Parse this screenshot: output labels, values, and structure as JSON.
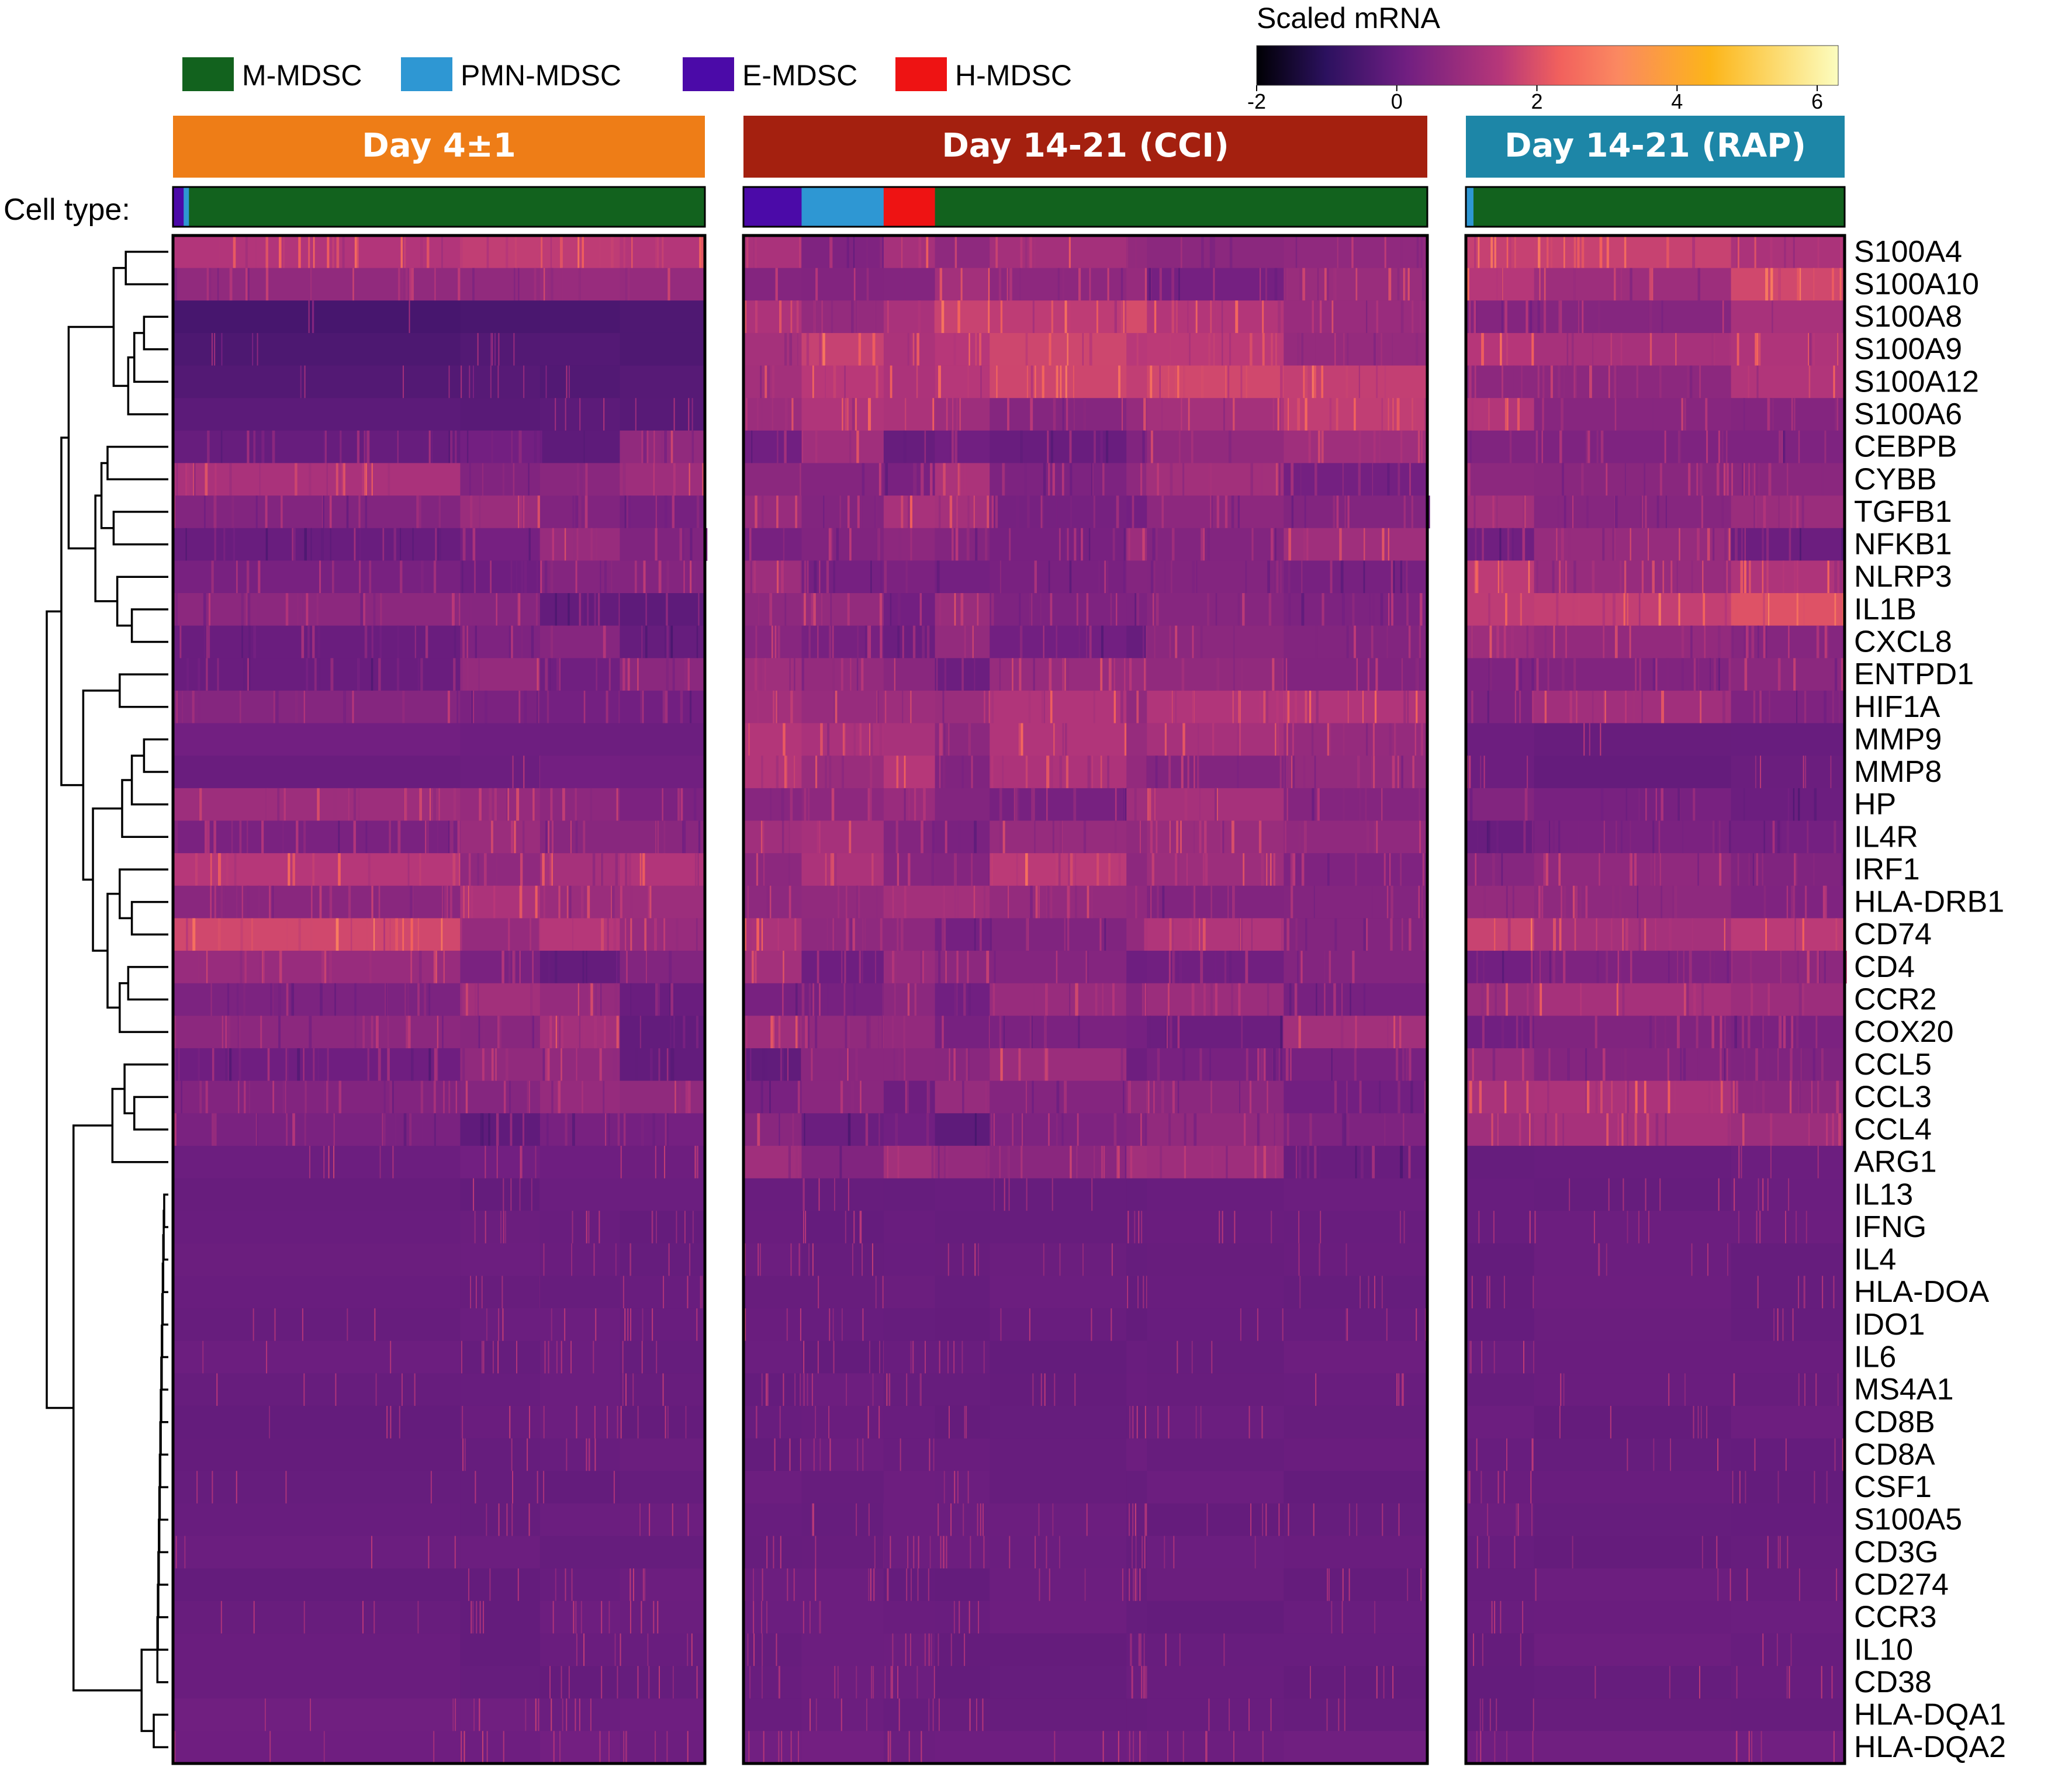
{
  "chart_data": {
    "type": "heatmap",
    "colorbar": {
      "title": "Scaled mRNA",
      "ticks": [
        "-2",
        "0",
        "2",
        "4",
        "6"
      ],
      "range": [
        -2,
        6.3
      ],
      "colors": [
        "#000004",
        "#2c115f",
        "#5e1b7a",
        "#721f81",
        "#b73779",
        "#f1605d",
        "#fb8861",
        "#fcb519",
        "#fcfdbf"
      ]
    },
    "legend": [
      {
        "label": "M-MDSC",
        "color": "#12621e"
      },
      {
        "label": "PMN-MDSC",
        "color": "#2e97d3"
      },
      {
        "label": "E-MDSC",
        "color": "#4b0aa8"
      },
      {
        "label": "H-MDSC",
        "color": "#ee1313"
      }
    ],
    "cell_type_label": "Cell type:",
    "panels": [
      {
        "title": "Day 4±1",
        "header_color": "#ee7d17",
        "cell_types": [
          {
            "type": "E-MDSC",
            "fraction": 0.02
          },
          {
            "type": "PMN-MDSC",
            "fraction": 0.01
          },
          {
            "type": "M-MDSC",
            "fraction": 0.97
          }
        ],
        "clusters": [
          0.54,
          0.15,
          0.15,
          0.16
        ]
      },
      {
        "title": "Day 14-21 (CCI)",
        "header_color": "#a4200f",
        "cell_types": [
          {
            "type": "E-MDSC",
            "fraction": 0.085
          },
          {
            "type": "PMN-MDSC",
            "fraction": 0.12
          },
          {
            "type": "H-MDSC",
            "fraction": 0.075
          },
          {
            "type": "M-MDSC",
            "fraction": 0.72
          }
        ],
        "clusters": [
          0.085,
          0.12,
          0.075,
          0.08,
          0.2,
          0.03,
          0.2,
          0.21
        ]
      },
      {
        "title": "Day 14-21 (RAP)",
        "header_color": "#1d86a7",
        "cell_types": [
          {
            "type": "PMN-MDSC",
            "fraction": 0.02
          },
          {
            "type": "M-MDSC",
            "fraction": 0.98
          }
        ],
        "clusters": [
          0.18,
          0.52,
          0.3
        ]
      }
    ],
    "genes": [
      "S100A4",
      "S100A10",
      "S100A8",
      "S100A9",
      "S100A12",
      "S100A6",
      "CEBPB",
      "CYBB",
      "TGFB1",
      "NFKB1",
      "NLRP3",
      "IL1B",
      "CXCL8",
      "ENTPD1",
      "HIF1A",
      "MMP9",
      "MMP8",
      "HP",
      "IL4R",
      "IRF1",
      "HLA-DRB1",
      "CD74",
      "CD4",
      "CCR2",
      "COX20",
      "CCL5",
      "CCL3",
      "CCL4",
      "ARG1",
      "IL13",
      "IFNG",
      "IL4",
      "HLA-DOA",
      "IDO1",
      "IL6",
      "MS4A1",
      "CD8B",
      "CD8A",
      "CSF1",
      "S100A5",
      "CD3G",
      "CD274",
      "CCR3",
      "IL10",
      "CD38",
      "HLA-DQA1",
      "HLA-DQA2"
    ],
    "mean_scaled_values": {
      "columns": [
        "Day 4±1",
        "Day 14-21 (CCI)",
        "Day 14-21 (RAP)"
      ],
      "rows": [
        [
          1.2,
          1.0,
          1.5
        ],
        [
          0.8,
          0.8,
          1.4
        ],
        [
          -0.5,
          1.4,
          1.1
        ],
        [
          -0.4,
          1.4,
          1.0
        ],
        [
          -0.3,
          1.3,
          0.9
        ],
        [
          -0.2,
          1.1,
          0.9
        ],
        [
          0.4,
          0.5,
          0.5
        ],
        [
          0.9,
          0.7,
          0.8
        ],
        [
          0.5,
          0.6,
          0.6
        ],
        [
          0.6,
          0.6,
          0.6
        ],
        [
          0.3,
          0.5,
          1.3
        ],
        [
          0.4,
          0.6,
          1.6
        ],
        [
          0.3,
          0.5,
          0.8
        ],
        [
          0.5,
          0.6,
          0.7
        ],
        [
          0.6,
          0.8,
          0.9
        ],
        [
          0.1,
          1.1,
          0.0
        ],
        [
          0.1,
          1.0,
          0.0
        ],
        [
          0.4,
          0.6,
          0.5
        ],
        [
          0.5,
          0.7,
          0.5
        ],
        [
          0.9,
          1.0,
          0.7
        ],
        [
          1.0,
          0.9,
          0.9
        ],
        [
          1.4,
          0.8,
          1.2
        ],
        [
          0.4,
          0.5,
          0.5
        ],
        [
          0.6,
          0.6,
          0.6
        ],
        [
          0.5,
          0.5,
          0.5
        ],
        [
          0.4,
          0.4,
          0.6
        ],
        [
          0.3,
          0.5,
          0.7
        ],
        [
          0.3,
          0.4,
          0.6
        ],
        [
          0.1,
          0.5,
          0.0
        ],
        [
          0.0,
          0.0,
          0.0
        ],
        [
          0.0,
          0.0,
          0.0
        ],
        [
          0.0,
          0.0,
          0.0
        ],
        [
          0.0,
          0.0,
          0.0
        ],
        [
          0.0,
          0.0,
          0.0
        ],
        [
          0.0,
          0.0,
          0.0
        ],
        [
          0.0,
          0.0,
          0.0
        ],
        [
          0.0,
          0.0,
          0.0
        ],
        [
          0.0,
          0.0,
          0.0
        ],
        [
          0.0,
          0.0,
          0.0
        ],
        [
          0.0,
          0.0,
          0.0
        ],
        [
          0.0,
          0.0,
          0.0
        ],
        [
          0.0,
          0.0,
          0.0
        ],
        [
          0.0,
          0.0,
          0.0
        ],
        [
          0.0,
          0.0,
          0.0
        ],
        [
          0.0,
          0.0,
          0.0
        ],
        [
          0.1,
          0.0,
          0.0
        ],
        [
          0.1,
          0.1,
          0.1
        ]
      ]
    }
  }
}
